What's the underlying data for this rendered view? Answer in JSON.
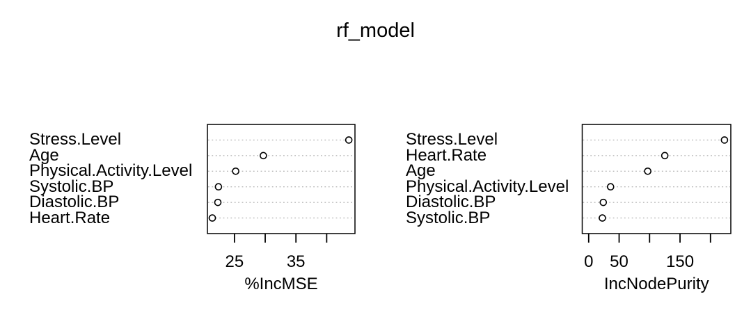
{
  "title": "rf_model",
  "colors": {
    "text": "#000000",
    "box": "#000000",
    "grid": "#b9b9b9",
    "point_stroke": "#000000",
    "point_fill": "#ffffff"
  },
  "chart_data": [
    {
      "type": "scatter",
      "subtype": "dotchart",
      "xlabel": "%IncMSE",
      "categories": [
        "Stress.Level",
        "Age",
        "Physical.Activity.Level",
        "Systolic.BP",
        "Diastolic.BP",
        "Heart.Rate"
      ],
      "values": [
        43.6,
        29.7,
        25.2,
        22.4,
        22.3,
        21.4
      ],
      "xlim": [
        20.6,
        44.6
      ],
      "grid": true,
      "ticks": [
        {
          "v": 25,
          "label": "25"
        },
        {
          "v": 30,
          "label": ""
        },
        {
          "v": 35,
          "label": "35"
        },
        {
          "v": 40,
          "label": ""
        }
      ]
    },
    {
      "type": "scatter",
      "subtype": "dotchart",
      "xlabel": "IncNodePurity",
      "categories": [
        "Stress.Level",
        "Heart.Rate",
        "Age",
        "Physical.Activity.Level",
        "Diastolic.BP",
        "Systolic.BP"
      ],
      "values": [
        223,
        125,
        97,
        36,
        24,
        22.5
      ],
      "xlim": [
        -10.6,
        233.4
      ],
      "grid": true,
      "ticks": [
        {
          "v": 0,
          "label": "0"
        },
        {
          "v": 50,
          "label": "50"
        },
        {
          "v": 100,
          "label": ""
        },
        {
          "v": 150,
          "label": "150"
        },
        {
          "v": 200,
          "label": ""
        }
      ]
    }
  ]
}
